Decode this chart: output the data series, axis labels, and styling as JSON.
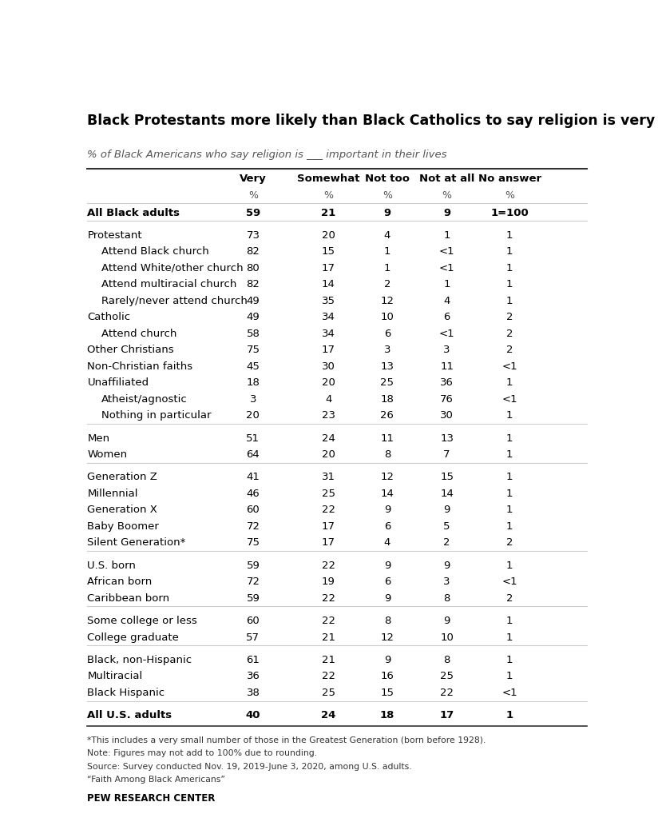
{
  "title": "Black Protestants more likely than Black Catholics to say religion is very important",
  "subtitle": "% of Black Americans who say religion is ___ important in their lives",
  "col_headers": [
    "Very",
    "Somewhat",
    "Not too",
    "Not at all",
    "No answer"
  ],
  "rows": [
    {
      "label": "All Black adults",
      "indent": 0,
      "bold": true,
      "values": [
        "59",
        "21",
        "9",
        "9",
        "1=100"
      ],
      "separator_below": true
    },
    {
      "label": "Protestant",
      "indent": 0,
      "bold": false,
      "values": [
        "73",
        "20",
        "4",
        "1",
        "1"
      ],
      "separator_below": false
    },
    {
      "label": "Attend Black church",
      "indent": 1,
      "bold": false,
      "values": [
        "82",
        "15",
        "1",
        "<1",
        "1"
      ],
      "separator_below": false
    },
    {
      "label": "Attend White/other church",
      "indent": 1,
      "bold": false,
      "values": [
        "80",
        "17",
        "1",
        "<1",
        "1"
      ],
      "separator_below": false
    },
    {
      "label": "Attend multiracial church",
      "indent": 1,
      "bold": false,
      "values": [
        "82",
        "14",
        "2",
        "1",
        "1"
      ],
      "separator_below": false
    },
    {
      "label": "Rarely/never attend church",
      "indent": 1,
      "bold": false,
      "values": [
        "49",
        "35",
        "12",
        "4",
        "1"
      ],
      "separator_below": false
    },
    {
      "label": "Catholic",
      "indent": 0,
      "bold": false,
      "values": [
        "49",
        "34",
        "10",
        "6",
        "2"
      ],
      "separator_below": false
    },
    {
      "label": "Attend church",
      "indent": 1,
      "bold": false,
      "values": [
        "58",
        "34",
        "6",
        "<1",
        "2"
      ],
      "separator_below": false
    },
    {
      "label": "Other Christians",
      "indent": 0,
      "bold": false,
      "values": [
        "75",
        "17",
        "3",
        "3",
        "2"
      ],
      "separator_below": false
    },
    {
      "label": "Non-Christian faiths",
      "indent": 0,
      "bold": false,
      "values": [
        "45",
        "30",
        "13",
        "11",
        "<1"
      ],
      "separator_below": false
    },
    {
      "label": "Unaffiliated",
      "indent": 0,
      "bold": false,
      "values": [
        "18",
        "20",
        "25",
        "36",
        "1"
      ],
      "separator_below": false
    },
    {
      "label": "Atheist/agnostic",
      "indent": 1,
      "bold": false,
      "values": [
        "3",
        "4",
        "18",
        "76",
        "<1"
      ],
      "separator_below": false
    },
    {
      "label": "Nothing in particular",
      "indent": 1,
      "bold": false,
      "values": [
        "20",
        "23",
        "26",
        "30",
        "1"
      ],
      "separator_below": true
    },
    {
      "label": "Men",
      "indent": 0,
      "bold": false,
      "values": [
        "51",
        "24",
        "11",
        "13",
        "1"
      ],
      "separator_below": false
    },
    {
      "label": "Women",
      "indent": 0,
      "bold": false,
      "values": [
        "64",
        "20",
        "8",
        "7",
        "1"
      ],
      "separator_below": true
    },
    {
      "label": "Generation Z",
      "indent": 0,
      "bold": false,
      "values": [
        "41",
        "31",
        "12",
        "15",
        "1"
      ],
      "separator_below": false
    },
    {
      "label": "Millennial",
      "indent": 0,
      "bold": false,
      "values": [
        "46",
        "25",
        "14",
        "14",
        "1"
      ],
      "separator_below": false
    },
    {
      "label": "Generation X",
      "indent": 0,
      "bold": false,
      "values": [
        "60",
        "22",
        "9",
        "9",
        "1"
      ],
      "separator_below": false
    },
    {
      "label": "Baby Boomer",
      "indent": 0,
      "bold": false,
      "values": [
        "72",
        "17",
        "6",
        "5",
        "1"
      ],
      "separator_below": false
    },
    {
      "label": "Silent Generation*",
      "indent": 0,
      "bold": false,
      "values": [
        "75",
        "17",
        "4",
        "2",
        "2"
      ],
      "separator_below": true
    },
    {
      "label": "U.S. born",
      "indent": 0,
      "bold": false,
      "values": [
        "59",
        "22",
        "9",
        "9",
        "1"
      ],
      "separator_below": false
    },
    {
      "label": "African born",
      "indent": 0,
      "bold": false,
      "values": [
        "72",
        "19",
        "6",
        "3",
        "<1"
      ],
      "separator_below": false
    },
    {
      "label": "Caribbean born",
      "indent": 0,
      "bold": false,
      "values": [
        "59",
        "22",
        "9",
        "8",
        "2"
      ],
      "separator_below": true
    },
    {
      "label": "Some college or less",
      "indent": 0,
      "bold": false,
      "values": [
        "60",
        "22",
        "8",
        "9",
        "1"
      ],
      "separator_below": false
    },
    {
      "label": "College graduate",
      "indent": 0,
      "bold": false,
      "values": [
        "57",
        "21",
        "12",
        "10",
        "1"
      ],
      "separator_below": true
    },
    {
      "label": "Black, non-Hispanic",
      "indent": 0,
      "bold": false,
      "values": [
        "61",
        "21",
        "9",
        "8",
        "1"
      ],
      "separator_below": false
    },
    {
      "label": "Multiracial",
      "indent": 0,
      "bold": false,
      "values": [
        "36",
        "22",
        "16",
        "25",
        "1"
      ],
      "separator_below": false
    },
    {
      "label": "Black Hispanic",
      "indent": 0,
      "bold": false,
      "values": [
        "38",
        "25",
        "15",
        "22",
        "<1"
      ],
      "separator_below": true
    },
    {
      "label": "All U.S. adults",
      "indent": 0,
      "bold": true,
      "values": [
        "40",
        "24",
        "18",
        "17",
        "1"
      ],
      "separator_below": false
    }
  ],
  "footnotes": [
    "*This includes a very small number of those in the Greatest Generation (born before 1928).",
    "Note: Figures may not add to 100% due to rounding.",
    "Source: Survey conducted Nov. 19, 2019-June 3, 2020, among U.S. adults.",
    "“Faith Among Black Americans”"
  ],
  "source_label": "PEW RESEARCH CENTER",
  "bg_color": "#ffffff",
  "text_color": "#000000",
  "line_color_dark": "#333333",
  "line_color_light": "#cccccc"
}
